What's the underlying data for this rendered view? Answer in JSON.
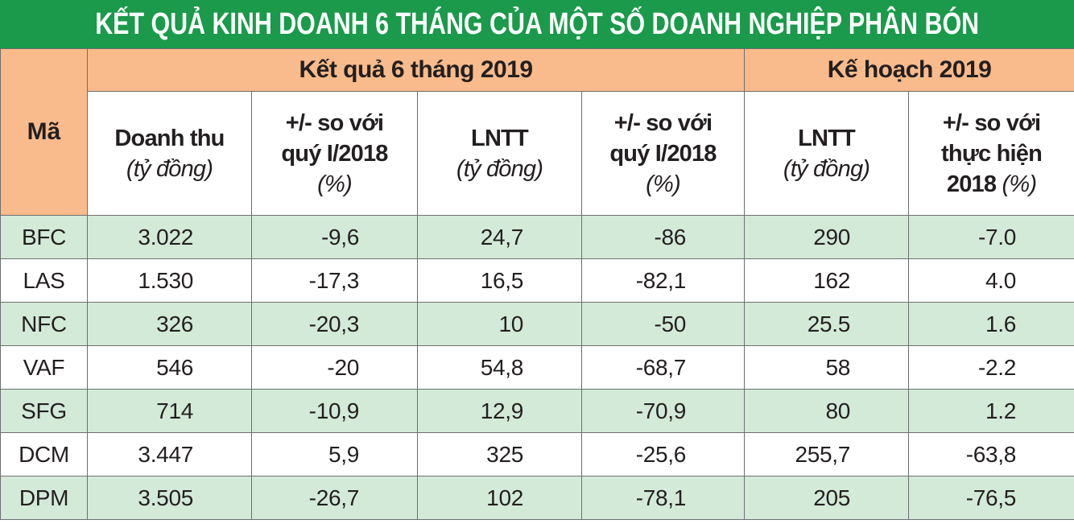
{
  "header": {
    "title": "KẾT QUẢ KINH DOANH 6 THÁNG CỦA MỘT SỐ DOANH NGHIỆP PHÂN BÓN"
  },
  "table": {
    "code_header": "Mã",
    "groups": [
      {
        "label": "Kết quả 6 tháng 2019",
        "span": 4
      },
      {
        "label": "Kế hoạch 2019",
        "span": 2
      }
    ],
    "columns": [
      {
        "name_lines": [
          "Doanh thu"
        ],
        "unit": "(tỷ đồng)"
      },
      {
        "name_lines": [
          "+/- so với",
          "quý I/2018"
        ],
        "unit": "(%)"
      },
      {
        "name_lines": [
          "LNTT"
        ],
        "unit": "(tỷ đồng)"
      },
      {
        "name_lines": [
          "+/- so với",
          "quý I/2018"
        ],
        "unit": "(%)"
      },
      {
        "name_lines": [
          "LNTT"
        ],
        "unit": "(tỷ đồng)"
      },
      {
        "name_lines": [
          "+/- so với",
          "thực hiện",
          "2018"
        ],
        "unit": "(%)",
        "unit_inline": true
      }
    ],
    "rows": [
      [
        "BFC",
        "3.022",
        "-9,6",
        "24,7",
        "-86",
        "290",
        "-7.0"
      ],
      [
        "LAS",
        "1.530",
        "-17,3",
        "16,5",
        "-82,1",
        "162",
        "4.0"
      ],
      [
        "NFC",
        "326",
        "-20,3",
        "10",
        "-50",
        "25.5",
        "1.6"
      ],
      [
        "VAF",
        "546",
        "-20",
        "54,8",
        "-68,7",
        "58",
        "-2.2"
      ],
      [
        "SFG",
        "714",
        "-10,9",
        "12,9",
        "-70,9",
        "80",
        "1.2"
      ],
      [
        "DCM",
        "3.447",
        "5,9",
        "325",
        "-25,6",
        "255,7",
        "-63,8"
      ],
      [
        "DPM",
        "3.505",
        "-26,7",
        "102",
        "-78,1",
        "205",
        "-76,5"
      ]
    ]
  }
}
